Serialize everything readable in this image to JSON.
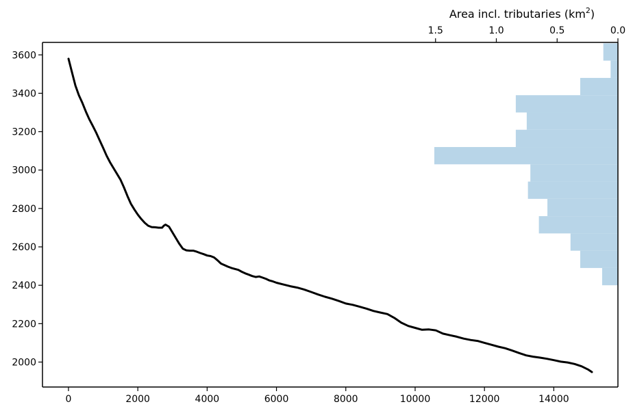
{
  "chart_data": {
    "type": "line",
    "title": "",
    "xlabel": "",
    "ylabel": "",
    "xlim": [
      -750,
      15850
    ],
    "ylim": [
      1870,
      3665
    ],
    "x_ticks": [
      0,
      2000,
      4000,
      6000,
      8000,
      10000,
      12000,
      14000
    ],
    "y_ticks": [
      2000,
      2200,
      2400,
      2600,
      2800,
      3000,
      3200,
      3400,
      3600
    ],
    "grid": false,
    "series": [
      {
        "style": "black solid line",
        "color": "#000000",
        "x": [
          0,
          100,
          200,
          300,
          400,
          500,
          600,
          700,
          800,
          900,
          1000,
          1100,
          1200,
          1300,
          1400,
          1500,
          1600,
          1700,
          1800,
          1900,
          2000,
          2100,
          2200,
          2300,
          2400,
          2500,
          2600,
          2700,
          2750,
          2800,
          2900,
          3000,
          3100,
          3200,
          3300,
          3400,
          3500,
          3600,
          3700,
          3800,
          3900,
          4000,
          4100,
          4200,
          4300,
          4400,
          4500,
          4600,
          4700,
          4800,
          4900,
          5000,
          5100,
          5200,
          5300,
          5400,
          5500,
          5600,
          5700,
          5800,
          5900,
          6000,
          6200,
          6400,
          6600,
          6800,
          7000,
          7200,
          7400,
          7600,
          7800,
          8000,
          8200,
          8400,
          8600,
          8800,
          9000,
          9200,
          9400,
          9600,
          9800,
          10000,
          10200,
          10400,
          10600,
          10800,
          11000,
          11200,
          11400,
          11600,
          11800,
          12000,
          12200,
          12400,
          12600,
          12800,
          13000,
          13200,
          13400,
          13600,
          13800,
          14000,
          14200,
          14400,
          14600,
          14800,
          15000,
          15100
        ],
        "y": [
          3580,
          3510,
          3440,
          3390,
          3350,
          3305,
          3265,
          3230,
          3195,
          3155,
          3115,
          3075,
          3040,
          3010,
          2980,
          2950,
          2910,
          2865,
          2825,
          2795,
          2768,
          2745,
          2725,
          2710,
          2703,
          2702,
          2700,
          2700,
          2710,
          2716,
          2705,
          2675,
          2645,
          2615,
          2590,
          2582,
          2580,
          2580,
          2575,
          2568,
          2562,
          2555,
          2552,
          2545,
          2530,
          2513,
          2505,
          2497,
          2490,
          2485,
          2480,
          2470,
          2462,
          2455,
          2448,
          2443,
          2446,
          2440,
          2433,
          2425,
          2420,
          2413,
          2404,
          2395,
          2388,
          2378,
          2365,
          2352,
          2340,
          2330,
          2318,
          2305,
          2298,
          2288,
          2278,
          2266,
          2258,
          2250,
          2230,
          2205,
          2188,
          2178,
          2168,
          2170,
          2165,
          2148,
          2140,
          2132,
          2122,
          2115,
          2110,
          2100,
          2090,
          2080,
          2072,
          2060,
          2047,
          2035,
          2028,
          2023,
          2017,
          2010,
          2002,
          1998,
          1990,
          1978,
          1960,
          1948
        ]
      }
    ],
    "secondary_axis": {
      "type": "horizontal-histogram",
      "label": "Area incl. tributaries (km²)",
      "label_text": "Area incl. tributaries (km",
      "label_sup": "2",
      "label_close": ")",
      "position": "top",
      "reversed": true,
      "xlim": [
        0.0,
        1.6
      ],
      "ticks": [
        1.5,
        1.0,
        0.5,
        0.0
      ],
      "tick_labels": [
        "1.5",
        "1.0",
        "0.5",
        "0.0"
      ],
      "color": "#b8d5e8",
      "bins": [
        {
          "y0": 2400,
          "y1": 2490,
          "area": 0.13
        },
        {
          "y0": 2490,
          "y1": 2580,
          "area": 0.31
        },
        {
          "y0": 2580,
          "y1": 2670,
          "area": 0.39
        },
        {
          "y0": 2670,
          "y1": 2760,
          "area": 0.65
        },
        {
          "y0": 2760,
          "y1": 2850,
          "area": 0.58
        },
        {
          "y0": 2850,
          "y1": 2940,
          "area": 0.74
        },
        {
          "y0": 2940,
          "y1": 3030,
          "area": 0.72
        },
        {
          "y0": 3030,
          "y1": 3120,
          "area": 1.51
        },
        {
          "y0": 3120,
          "y1": 3210,
          "area": 0.84
        },
        {
          "y0": 3210,
          "y1": 3300,
          "area": 0.75
        },
        {
          "y0": 3300,
          "y1": 3390,
          "area": 0.84
        },
        {
          "y0": 3390,
          "y1": 3480,
          "area": 0.31
        },
        {
          "y0": 3480,
          "y1": 3570,
          "area": 0.06
        },
        {
          "y0": 3570,
          "y1": 3660,
          "area": 0.12
        }
      ]
    }
  }
}
